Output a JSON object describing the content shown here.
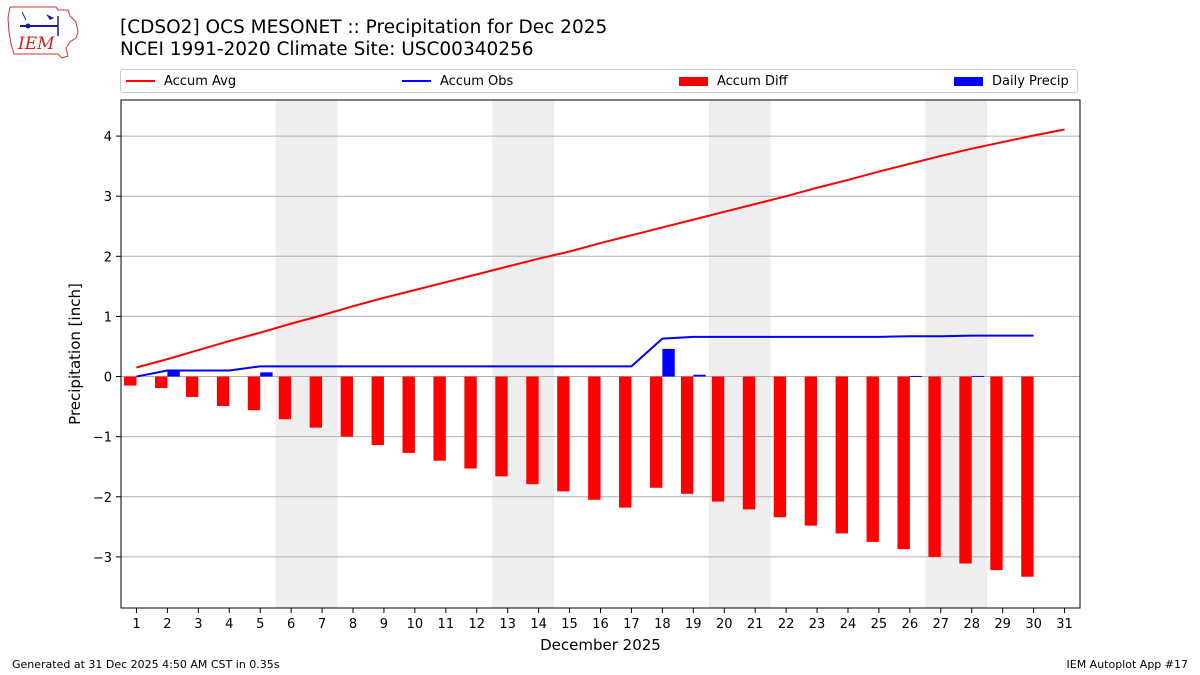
{
  "title_line1": "[CDSO2] OCS MESONET :: Precipitation for Dec 2025",
  "title_line2": "NCEI 1991-2020 Climate Site: USC00340256",
  "logo_text": "IEM",
  "footer_left": "Generated at 31 Dec 2025 4:50 AM CST in 0.35s",
  "footer_right": "IEM Autoplot App #17",
  "colors": {
    "accum_avg": "#ff0000",
    "accum_obs": "#0000ff",
    "accum_diff": "#ff0000",
    "daily_precip": "#0000ff",
    "weekend_shade": "#eeeeee",
    "grid": "#b0b0b0"
  },
  "legend": [
    {
      "label": "Accum Avg",
      "kind": "line",
      "color": "#ff0000"
    },
    {
      "label": "Accum Obs",
      "kind": "line",
      "color": "#0000ff"
    },
    {
      "label": "Accum Diff",
      "kind": "patch",
      "color": "#ff0000"
    },
    {
      "label": "Daily Precip",
      "kind": "patch",
      "color": "#0000ff"
    }
  ],
  "chart_data": {
    "type": "bar",
    "title": "[CDSO2] OCS MESONET :: Precipitation for Dec 2025",
    "subtitle": "NCEI 1991-2020 Climate Site: USC00340256",
    "xlabel": "December 2025",
    "ylabel": "Precipitation [inch]",
    "xlim": [
      0.5,
      31.5
    ],
    "ylim": [
      -3.85,
      4.6
    ],
    "yticks": [
      -3,
      -2,
      -1,
      0,
      1,
      2,
      3,
      4
    ],
    "ytick_labels": [
      "−3",
      "−2",
      "−1",
      "0",
      "1",
      "2",
      "3",
      "4"
    ],
    "x": [
      1,
      2,
      3,
      4,
      5,
      6,
      7,
      8,
      9,
      10,
      11,
      12,
      13,
      14,
      15,
      16,
      17,
      18,
      19,
      20,
      21,
      22,
      23,
      24,
      25,
      26,
      27,
      28,
      29,
      30,
      31
    ],
    "xtick_labels": [
      "1",
      "2",
      "3",
      "4",
      "5",
      "6",
      "7",
      "8",
      "9",
      "10",
      "11",
      "12",
      "13",
      "14",
      "15",
      "16",
      "17",
      "18",
      "19",
      "20",
      "21",
      "22",
      "23",
      "24",
      "25",
      "26",
      "27",
      "28",
      "29",
      "30",
      "31"
    ],
    "grid": "horizontal",
    "legend_position": "top",
    "weekend_spans": [
      [
        5.5,
        7.5
      ],
      [
        12.5,
        14.5
      ],
      [
        19.5,
        21.5
      ],
      [
        26.5,
        28.5
      ]
    ],
    "series": [
      {
        "name": "Accum Avg",
        "kind": "line",
        "color": "#ff0000",
        "x": [
          1,
          2,
          3,
          4,
          5,
          6,
          7,
          8,
          9,
          10,
          11,
          12,
          13,
          14,
          15,
          16,
          17,
          18,
          19,
          20,
          21,
          22,
          23,
          24,
          25,
          26,
          27,
          28,
          29,
          30,
          31
        ],
        "values": [
          0.15,
          0.29,
          0.44,
          0.59,
          0.73,
          0.88,
          1.02,
          1.17,
          1.31,
          1.44,
          1.57,
          1.7,
          1.83,
          1.96,
          2.08,
          2.22,
          2.35,
          2.48,
          2.61,
          2.74,
          2.87,
          3.0,
          3.14,
          3.27,
          3.41,
          3.54,
          3.67,
          3.79,
          3.9,
          4.01,
          4.11
        ]
      },
      {
        "name": "Accum Obs",
        "kind": "line",
        "color": "#0000ff",
        "x": [
          1,
          2,
          3,
          4,
          5,
          6,
          7,
          8,
          9,
          10,
          11,
          12,
          13,
          14,
          15,
          16,
          17,
          18,
          19,
          20,
          21,
          22,
          23,
          24,
          25,
          26,
          27,
          28,
          29,
          30
        ],
        "values": [
          0.0,
          0.1,
          0.1,
          0.1,
          0.17,
          0.17,
          0.17,
          0.17,
          0.17,
          0.17,
          0.17,
          0.17,
          0.17,
          0.17,
          0.17,
          0.17,
          0.17,
          0.63,
          0.66,
          0.66,
          0.66,
          0.66,
          0.66,
          0.66,
          0.66,
          0.67,
          0.67,
          0.68,
          0.68,
          0.68
        ]
      },
      {
        "name": "Accum Diff",
        "kind": "bar",
        "color": "#ff0000",
        "x": [
          1,
          2,
          3,
          4,
          5,
          6,
          7,
          8,
          9,
          10,
          11,
          12,
          13,
          14,
          15,
          16,
          17,
          18,
          19,
          20,
          21,
          22,
          23,
          24,
          25,
          26,
          27,
          28,
          29,
          30
        ],
        "values": [
          -0.15,
          -0.19,
          -0.34,
          -0.49,
          -0.56,
          -0.71,
          -0.85,
          -1.0,
          -1.14,
          -1.27,
          -1.4,
          -1.53,
          -1.66,
          -1.79,
          -1.91,
          -2.05,
          -2.18,
          -1.85,
          -1.95,
          -2.08,
          -2.21,
          -2.34,
          -2.48,
          -2.61,
          -2.75,
          -2.87,
          -3.0,
          -3.11,
          -3.22,
          -3.33
        ]
      },
      {
        "name": "Daily Precip",
        "kind": "bar",
        "color": "#0000ff",
        "x": [
          1,
          2,
          3,
          4,
          5,
          6,
          7,
          8,
          9,
          10,
          11,
          12,
          13,
          14,
          15,
          16,
          17,
          18,
          19,
          20,
          21,
          22,
          23,
          24,
          25,
          26,
          27,
          28,
          29,
          30
        ],
        "values": [
          0,
          0.1,
          0,
          0,
          0.07,
          0,
          0,
          0,
          0,
          0,
          0,
          0,
          0,
          0,
          0,
          0,
          0,
          0.46,
          0.03,
          0,
          0,
          0,
          0,
          0,
          0,
          0.01,
          0,
          0.01,
          0,
          0
        ]
      }
    ]
  }
}
